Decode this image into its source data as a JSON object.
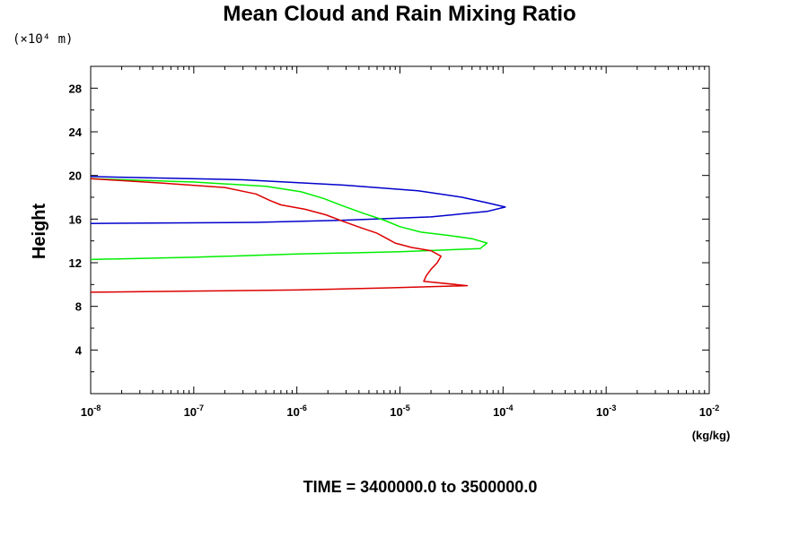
{
  "chart_data": {
    "type": "line",
    "title": "Mean Cloud and Rain Mixing Ratio",
    "y_unit_note": "(×10⁴ m)",
    "ylabel": "Height",
    "xunit": "(kg/kg)",
    "footer": "TIME = 3400000.0 to 3500000.0",
    "x_scale": "log",
    "xlim": [
      1e-08,
      0.01
    ],
    "ylim": [
      0,
      30
    ],
    "x_tick_values": [
      1e-08,
      1e-07,
      1e-06,
      1e-05,
      0.0001,
      0.001,
      0.01
    ],
    "x_tick_labels": [
      {
        "base": "10",
        "exp": "-8"
      },
      {
        "base": "10",
        "exp": "-7"
      },
      {
        "base": "10",
        "exp": "-6"
      },
      {
        "base": "10",
        "exp": "-5"
      },
      {
        "base": "10",
        "exp": "-4"
      },
      {
        "base": "10",
        "exp": "-3"
      },
      {
        "base": "10",
        "exp": "-2"
      }
    ],
    "y_ticks": [
      4,
      8,
      12,
      16,
      20,
      24,
      28
    ],
    "grid": false,
    "series": [
      {
        "color": "#0000cc",
        "points": [
          [
            1e-08,
            19.9
          ],
          [
            3e-07,
            19.6
          ],
          [
            3e-06,
            19.1
          ],
          [
            1.5e-05,
            18.6
          ],
          [
            4e-05,
            18.0
          ],
          [
            7e-05,
            17.5
          ],
          [
            0.000105,
            17.1
          ],
          [
            7e-05,
            16.7
          ],
          [
            2e-05,
            16.2
          ],
          [
            3e-06,
            15.9
          ],
          [
            4e-07,
            15.7
          ],
          [
            1e-08,
            15.6
          ]
        ]
      },
      {
        "color": "#00ee00",
        "points": [
          [
            1e-08,
            19.7
          ],
          [
            1e-07,
            19.4
          ],
          [
            5e-07,
            19.0
          ],
          [
            1.1e-06,
            18.5
          ],
          [
            1.8e-06,
            17.9
          ],
          [
            2.8e-06,
            17.2
          ],
          [
            4.5e-06,
            16.5
          ],
          [
            7e-06,
            15.9
          ],
          [
            1e-05,
            15.3
          ],
          [
            1.6e-05,
            14.8
          ],
          [
            3e-05,
            14.5
          ],
          [
            5e-05,
            14.2
          ],
          [
            7e-05,
            13.8
          ],
          [
            6e-05,
            13.3
          ],
          [
            1e-05,
            13.0
          ],
          [
            1e-06,
            12.8
          ],
          [
            1e-07,
            12.5
          ],
          [
            1e-08,
            12.3
          ]
        ]
      },
      {
        "color": "#dd0000",
        "points": [
          [
            1e-08,
            19.7
          ],
          [
            5e-08,
            19.3
          ],
          [
            2e-07,
            18.9
          ],
          [
            4e-07,
            18.3
          ],
          [
            5.5e-07,
            17.7
          ],
          [
            7e-07,
            17.3
          ],
          [
            1.2e-06,
            16.9
          ],
          [
            1.9e-06,
            16.4
          ],
          [
            2.8e-06,
            15.8
          ],
          [
            4.2e-06,
            15.2
          ],
          [
            6e-06,
            14.7
          ],
          [
            7.5e-06,
            14.2
          ],
          [
            9e-06,
            13.8
          ],
          [
            1.3e-05,
            13.4
          ],
          [
            2e-05,
            13.1
          ],
          [
            2.5e-05,
            12.6
          ],
          [
            2.3e-05,
            12.0
          ],
          [
            2e-05,
            11.4
          ],
          [
            1.8e-05,
            10.8
          ],
          [
            1.7e-05,
            10.3
          ],
          [
            4.5e-05,
            9.9
          ],
          [
            8e-06,
            9.7
          ],
          [
            1e-06,
            9.5
          ],
          [
            1e-07,
            9.4
          ],
          [
            1e-08,
            9.3
          ]
        ]
      }
    ]
  }
}
